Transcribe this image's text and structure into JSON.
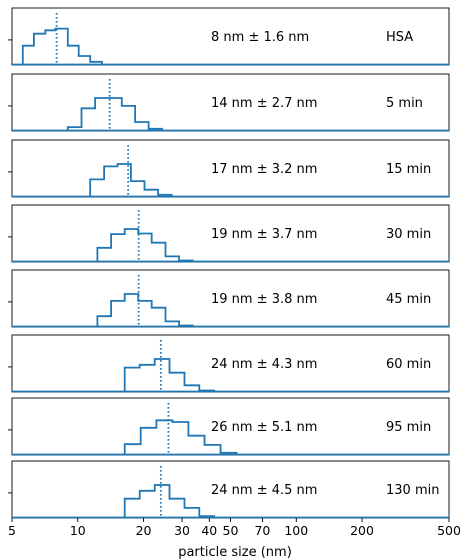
{
  "chart_data": {
    "type": "histogram",
    "xscale": "log",
    "xlim": [
      5,
      500
    ],
    "xlabel": "particle size (nm)",
    "xticks": [
      5,
      10,
      20,
      30,
      40,
      50,
      70,
      100,
      200,
      500
    ],
    "xtick_labels": [
      "5",
      "10",
      "20",
      "30",
      "40",
      "50",
      "70",
      "100",
      "200",
      "500"
    ],
    "color": "#1f77b4",
    "panels": [
      {
        "stat_label": "8 nm ± 1.6 nm",
        "time_label": "HSA",
        "mean": 8,
        "bin_edges": [
          5.6,
          6.3,
          7.1,
          7.9,
          9.0,
          10.1,
          11.4,
          12.9
        ],
        "heights": [
          0.55,
          0.9,
          1.0,
          1.05,
          0.55,
          0.25,
          0.08
        ]
      },
      {
        "stat_label": "14 nm ± 2.7 nm",
        "time_label": "5 min",
        "mean": 14,
        "bin_edges": [
          9.0,
          10.4,
          12.0,
          13.8,
          15.9,
          18.3,
          21.1,
          24.3
        ],
        "heights": [
          0.1,
          0.65,
          0.95,
          0.95,
          0.72,
          0.25,
          0.05
        ]
      },
      {
        "stat_label": "17 nm ± 3.2 nm",
        "time_label": "15 min",
        "mean": 17,
        "bin_edges": [
          11.4,
          13.2,
          15.2,
          17.5,
          20.2,
          23.3,
          26.9
        ],
        "heights": [
          0.5,
          0.88,
          0.95,
          0.45,
          0.2,
          0.05
        ]
      },
      {
        "stat_label": "19 nm ± 3.7 nm",
        "time_label": "30 min",
        "mean": 19,
        "bin_edges": [
          12.3,
          14.2,
          16.4,
          18.9,
          21.8,
          25.2,
          29.1,
          33.6
        ],
        "heights": [
          0.4,
          0.8,
          0.95,
          0.82,
          0.55,
          0.15,
          0.03
        ]
      },
      {
        "stat_label": "19 nm ± 3.8 nm",
        "time_label": "45 min",
        "mean": 19,
        "bin_edges": [
          12.3,
          14.2,
          16.4,
          18.9,
          21.8,
          25.2,
          29.1,
          33.6
        ],
        "heights": [
          0.3,
          0.75,
          0.95,
          0.75,
          0.55,
          0.15,
          0.03
        ]
      },
      {
        "stat_label": "24 nm ± 4.3 nm",
        "time_label": "60 min",
        "mean": 24,
        "bin_edges": [
          16.4,
          19.2,
          22.5,
          26.3,
          30.8,
          36.0,
          42.1
        ],
        "heights": [
          0.7,
          0.78,
          0.95,
          0.55,
          0.18,
          0.03
        ]
      },
      {
        "stat_label": "26 nm ± 5.1 nm",
        "time_label": "95 min",
        "mean": 26,
        "bin_edges": [
          16.4,
          19.4,
          22.9,
          27.1,
          32.1,
          38.0,
          45.0,
          53.3
        ],
        "heights": [
          0.3,
          0.78,
          1.0,
          0.95,
          0.55,
          0.28,
          0.05
        ]
      },
      {
        "stat_label": "24 nm ± 4.5 nm",
        "time_label": "130 min",
        "mean": 24,
        "bin_edges": [
          16.4,
          19.2,
          22.5,
          26.3,
          30.8,
          36.0,
          42.1
        ],
        "heights": [
          0.55,
          0.78,
          0.95,
          0.55,
          0.28,
          0.04
        ]
      }
    ]
  }
}
